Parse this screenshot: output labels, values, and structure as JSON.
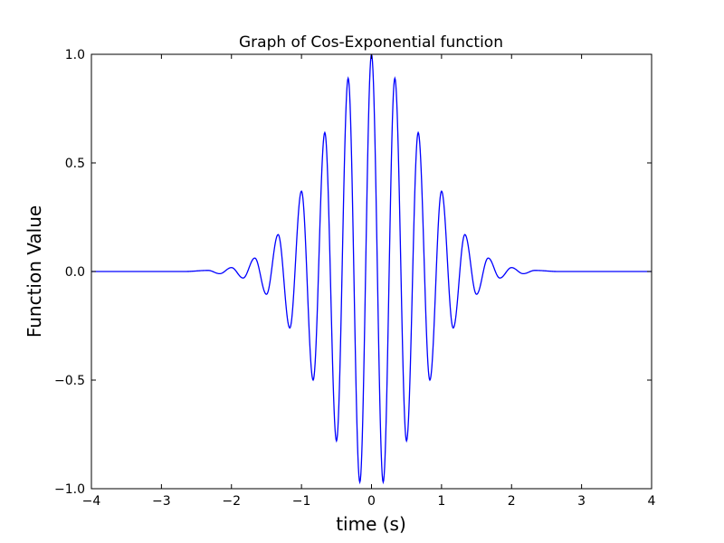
{
  "chart_data": {
    "type": "line",
    "title": "Graph of Cos-Exponential function",
    "xlabel": "time (s)",
    "ylabel": "Function Value",
    "xlim": [
      -4,
      4
    ],
    "ylim": [
      -1.0,
      1.0
    ],
    "x_ticks": [
      -4,
      -3,
      -2,
      -1,
      0,
      1,
      2,
      3,
      4
    ],
    "x_tick_labels": [
      "−4",
      "−3",
      "−2",
      "−1",
      "0",
      "1",
      "2",
      "3",
      "4"
    ],
    "y_ticks": [
      -1.0,
      -0.5,
      0.0,
      0.5,
      1.0
    ],
    "y_tick_labels": [
      "−1.0",
      "−0.5",
      "0.0",
      "0.5",
      "1.0"
    ],
    "grid": false,
    "line_color": "#0000ff",
    "series": [
      {
        "x": [
          -4.0,
          -3.0,
          -2.6667,
          -2.3333,
          -2.1667,
          -2.0,
          -1.8333,
          -1.6667,
          -1.5,
          -1.3333,
          -1.1667,
          -1.0,
          -0.8333,
          -0.6667,
          -0.5,
          -0.3333,
          -0.1667,
          0.0,
          0.1667,
          0.3333,
          0.5,
          0.6667,
          0.8333,
          1.0,
          1.1667,
          1.3333,
          1.5,
          1.6667,
          1.8333,
          2.0,
          2.1667,
          2.3333,
          2.6667,
          3.0,
          4.0
        ],
        "y": [
          0.0,
          0.0,
          0.0,
          0.005,
          -0.01,
          0.018,
          -0.03,
          0.062,
          -0.105,
          0.17,
          -0.26,
          0.37,
          -0.5,
          0.64,
          -0.78,
          0.89,
          -0.97,
          1.0,
          -0.97,
          0.89,
          -0.78,
          0.64,
          -0.5,
          0.37,
          -0.26,
          0.17,
          -0.105,
          0.062,
          -0.03,
          0.018,
          -0.01,
          0.005,
          0.0,
          0.0,
          0.0
        ]
      }
    ]
  }
}
